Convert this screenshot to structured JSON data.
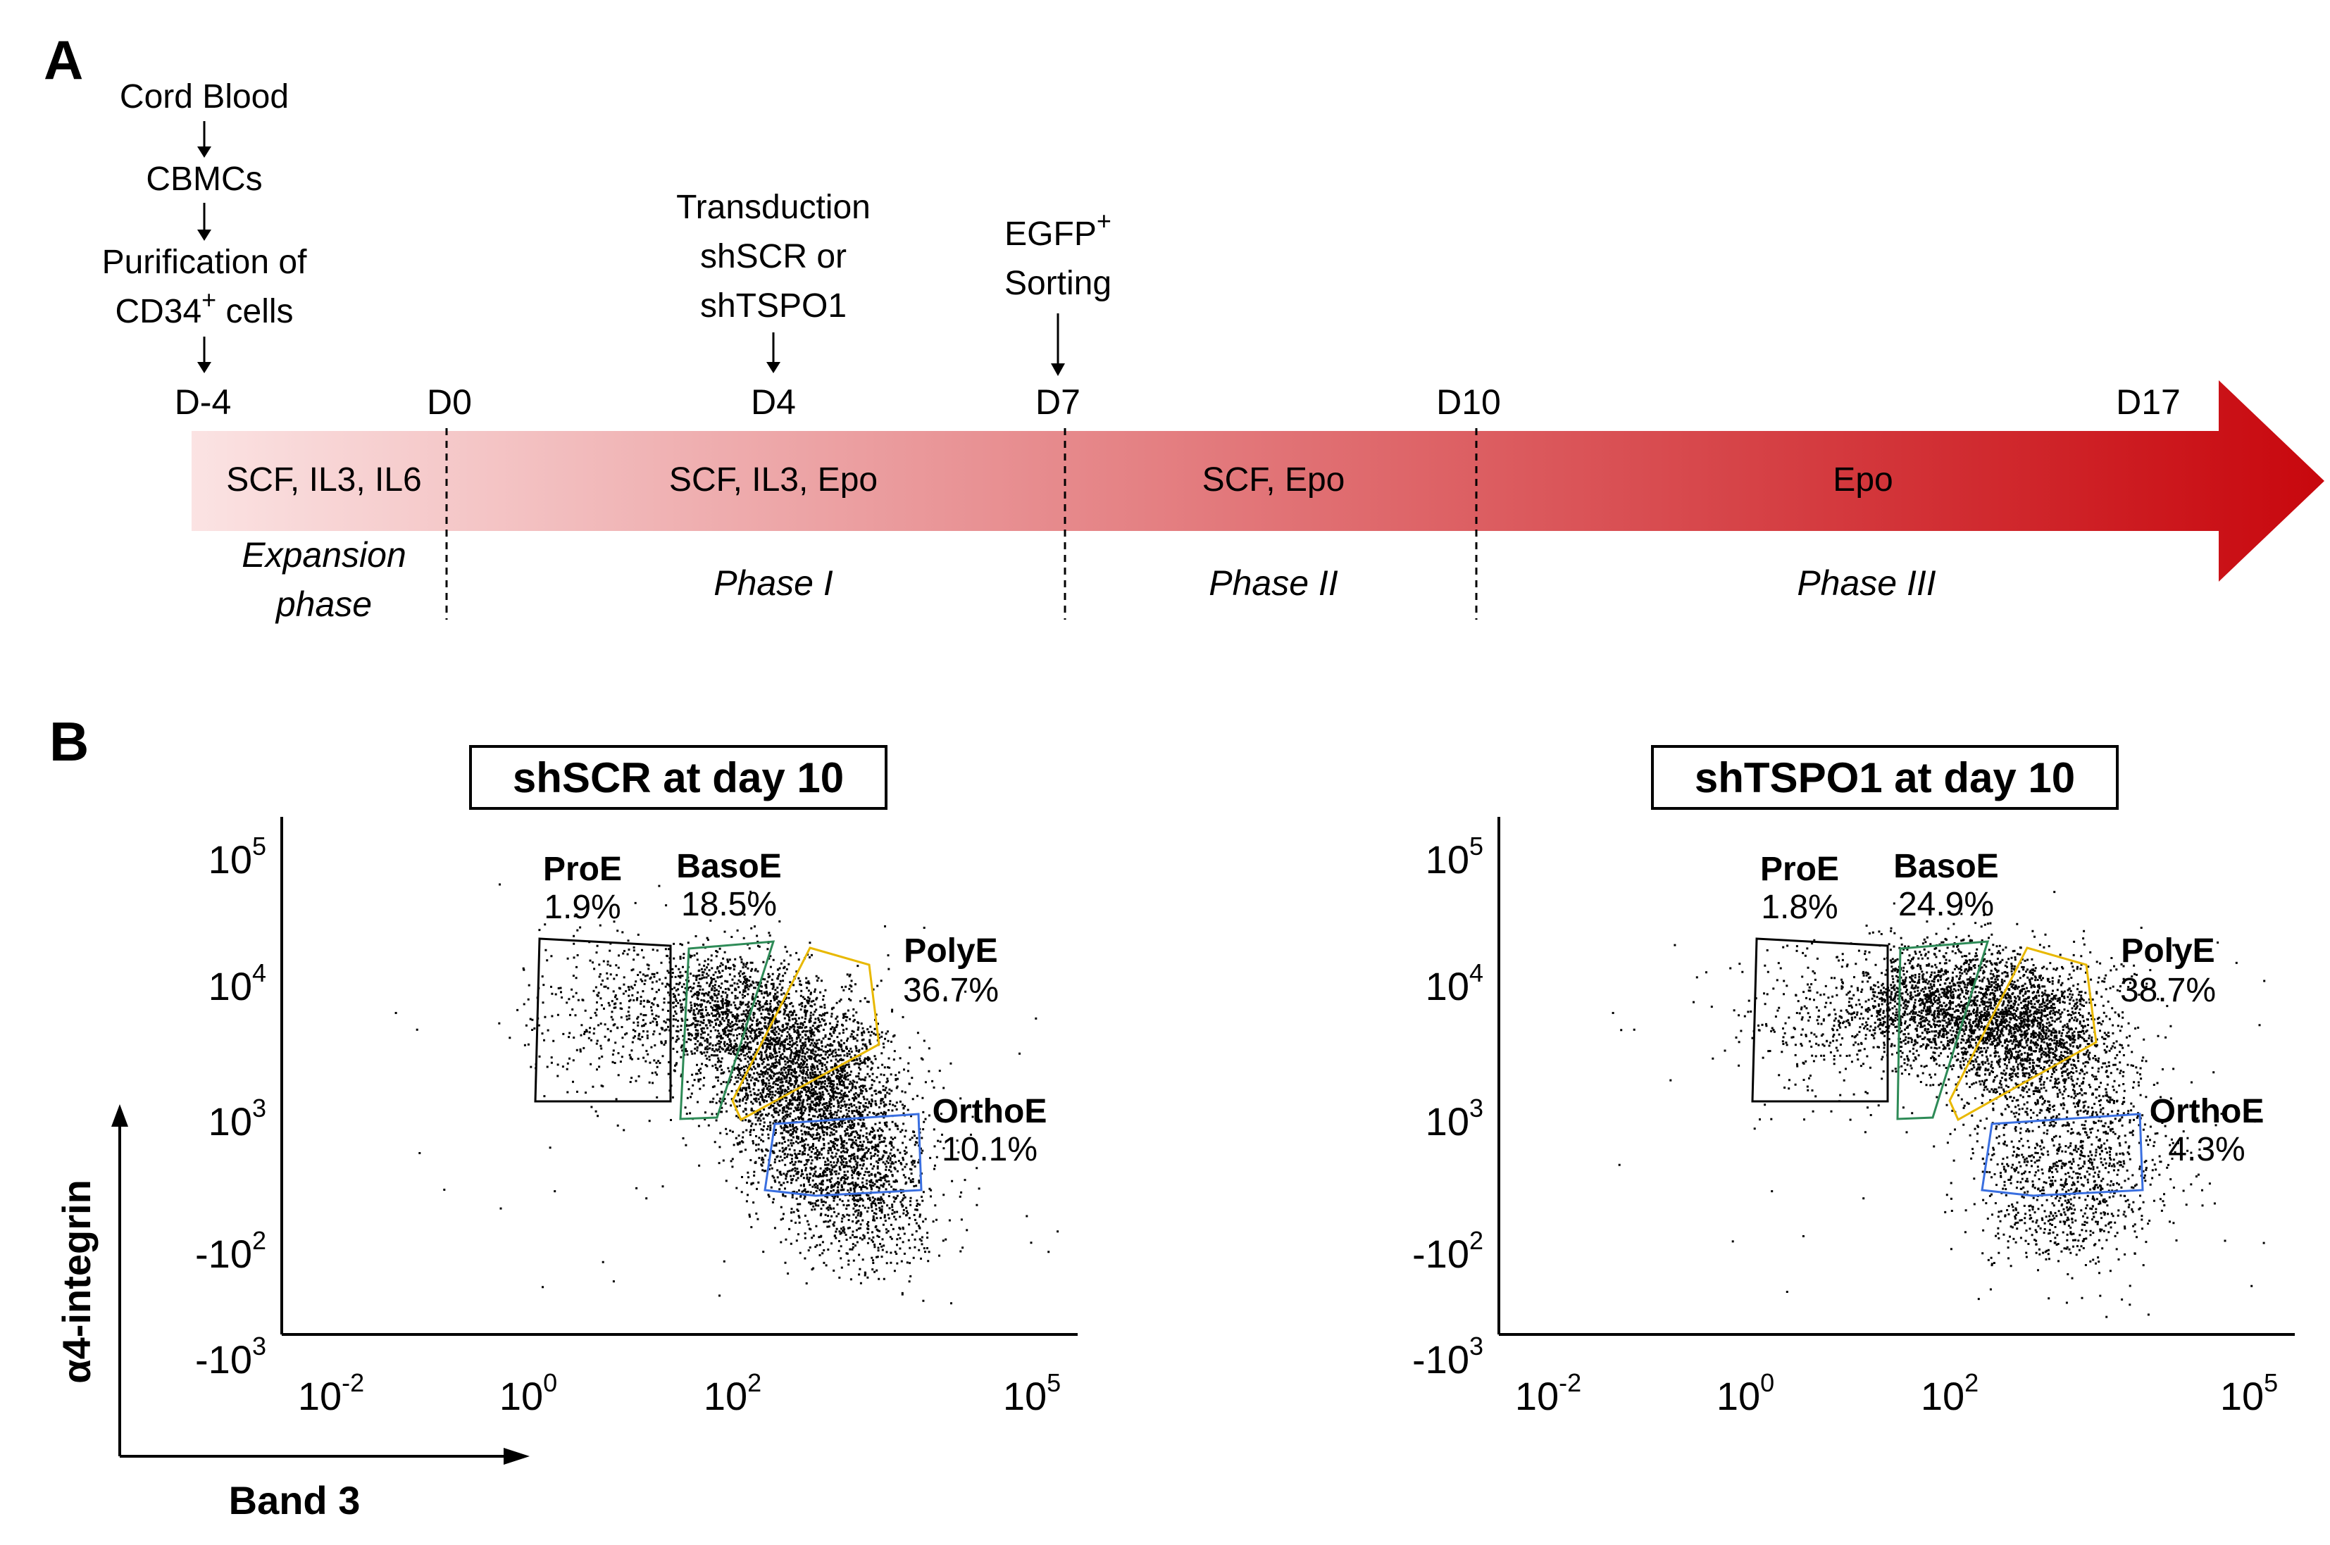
{
  "panel_a": {
    "letter": "A",
    "steps": {
      "cord_blood": "Cord Blood",
      "cbmcs": "CBMCs",
      "purification_line1": "Purification of",
      "purification_line2": "CD34",
      "purification_sup": "+",
      "purification_tail": " cells",
      "transduction_line1": "Transduction",
      "transduction_line2": "shSCR or",
      "transduction_line3": "shTSPO1",
      "sorting_line1": "EGFP",
      "sorting_sup": "+",
      "sorting_line2": "Sorting"
    },
    "days": [
      "D-4",
      "D0",
      "D4",
      "D7",
      "D10",
      "D17"
    ],
    "bands": [
      "SCF, IL3, IL6",
      "SCF, IL3, Epo",
      "SCF, Epo",
      "Epo"
    ],
    "phases": {
      "expansion_line1": "Expansion",
      "expansion_line2": "phase",
      "phase1": "Phase I",
      "phase2": "Phase II",
      "phase3": "Phase III"
    },
    "arrow_color_start": "#fbe3e3",
    "arrow_color_end": "#c8070d"
  },
  "panel_b": {
    "letter": "B",
    "x_axis_label": "Band 3",
    "y_axis_label": "α4-integrin",
    "tick_bases": {
      "x_m2": "10",
      "x_0": "10",
      "x_2": "10",
      "x_5": "10",
      "y_5": "10",
      "y_4": "10",
      "y_3": "10",
      "y_m2": "-10",
      "y_m3": "-10"
    },
    "tick_exps": {
      "x_m2": "-2",
      "x_0": "0",
      "x_2": "2",
      "x_5": "5",
      "y_5": "5",
      "y_4": "4",
      "y_3": "3",
      "y_m2": "2",
      "y_m3": "3"
    },
    "colors": {
      "proe": "#000000",
      "basoe": "#1b8a1b",
      "polye": "#f5c518",
      "orthoe": "#1a1adc",
      "basoe_gate": "#2e8b57",
      "polye_gate": "#e8b800",
      "orthoe_gate": "#3a6fe0"
    },
    "plots": [
      {
        "title": "shSCR at day 10",
        "gates": {
          "proe_name": "ProE",
          "proe_pct": "1.9%",
          "basoe_name": "BasoE",
          "basoe_pct": "18.5%",
          "polye_name": "PolyE",
          "polye_pct": "36.7%",
          "orthoe_name": "OrthoE",
          "orthoe_pct": "10.1%"
        }
      },
      {
        "title": "shTSPO1 at day 10",
        "gates": {
          "proe_name": "ProE",
          "proe_pct": "1.8%",
          "basoe_name": "BasoE",
          "basoe_pct": "24.9%",
          "polye_name": "PolyE",
          "polye_pct": "38.7%",
          "orthoe_name": "OrthoE",
          "orthoe_pct": "4.3%"
        }
      }
    ]
  }
}
